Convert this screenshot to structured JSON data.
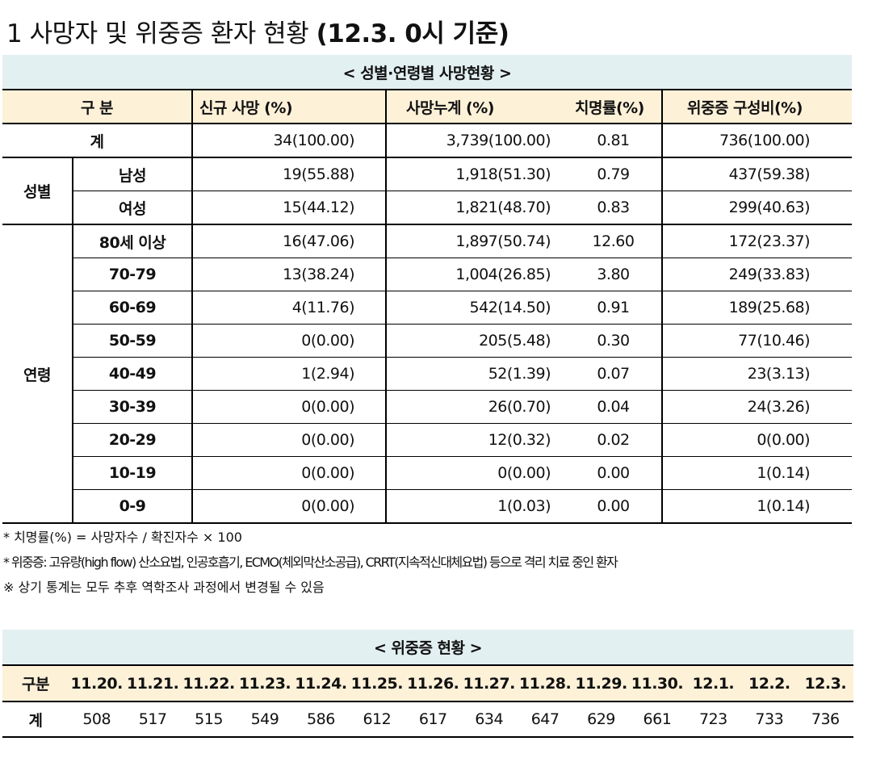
{
  "title": {
    "main": "1 사망자 및 위중증 환자 현황",
    "date": "(12.3. 0시 기준)"
  },
  "death_table": {
    "caption": "< 성별·연령별 사망현황 >",
    "headers": [
      "구 분",
      "신규 사망 (%)",
      "사망누계 (%)",
      "치명률(%)",
      "위중증 구성비(%)"
    ],
    "total": {
      "label": "계",
      "cells": [
        "34(100.00)",
        "3,739(100.00)",
        "0.81",
        "736(100.00)"
      ]
    },
    "groups": [
      {
        "label": "성별",
        "rows": [
          {
            "label": "남성",
            "cells": [
              "19(55.88)",
              "1,918(51.30)",
              "0.79",
              "437(59.38)"
            ]
          },
          {
            "label": "여성",
            "cells": [
              "15(44.12)",
              "1,821(48.70)",
              "0.83",
              "299(40.63)"
            ]
          }
        ]
      },
      {
        "label": "연령",
        "rows": [
          {
            "label": "80세 이상",
            "cells": [
              "16(47.06)",
              "1,897(50.74)",
              "12.60",
              "172(23.37)"
            ]
          },
          {
            "label": "70-79",
            "cells": [
              "13(38.24)",
              "1,004(26.85)",
              "3.80",
              "249(33.83)"
            ]
          },
          {
            "label": "60-69",
            "cells": [
              "4(11.76)",
              "542(14.50)",
              "0.91",
              "189(25.68)"
            ]
          },
          {
            "label": "50-59",
            "cells": [
              "0(0.00)",
              "205(5.48)",
              "0.30",
              "77(10.46)"
            ]
          },
          {
            "label": "40-49",
            "cells": [
              "1(2.94)",
              "52(1.39)",
              "0.07",
              "23(3.13)"
            ]
          },
          {
            "label": "30-39",
            "cells": [
              "0(0.00)",
              "26(0.70)",
              "0.04",
              "24(3.26)"
            ]
          },
          {
            "label": "20-29",
            "cells": [
              "0(0.00)",
              "12(0.32)",
              "0.02",
              "0(0.00)"
            ]
          },
          {
            "label": "10-19",
            "cells": [
              "0(0.00)",
              "0(0.00)",
              "0.00",
              "1(0.14)"
            ]
          },
          {
            "label": "0-9",
            "cells": [
              "0(0.00)",
              "1(0.03)",
              "0.00",
              "1(0.14)"
            ]
          }
        ]
      }
    ]
  },
  "notes": [
    "* 치명률(%) = 사망자수 / 확진자수 × 100",
    "* 위중증: 고유량(high flow) 산소요법, 인공호흡기, ECMO(체외막산소공급), CRRT(지속적신대체요법) 등으로 격리 치료 중인 환자",
    "※ 상기 통계는 모두 추후 역학조사 과정에서 변경될 수 있음"
  ],
  "severe_table": {
    "caption": "< 위중증 현황 >",
    "header_label": "구분",
    "dates": [
      "11.20.",
      "11.21.",
      "11.22.",
      "11.23.",
      "11.24.",
      "11.25.",
      "11.26.",
      "11.27.",
      "11.28.",
      "11.29.",
      "11.30.",
      "12.1.",
      "12.2.",
      "12.3."
    ],
    "row_label": "계",
    "values": [
      "508",
      "517",
      "515",
      "549",
      "586",
      "612",
      "617",
      "634",
      "647",
      "629",
      "661",
      "723",
      "733",
      "736"
    ]
  }
}
